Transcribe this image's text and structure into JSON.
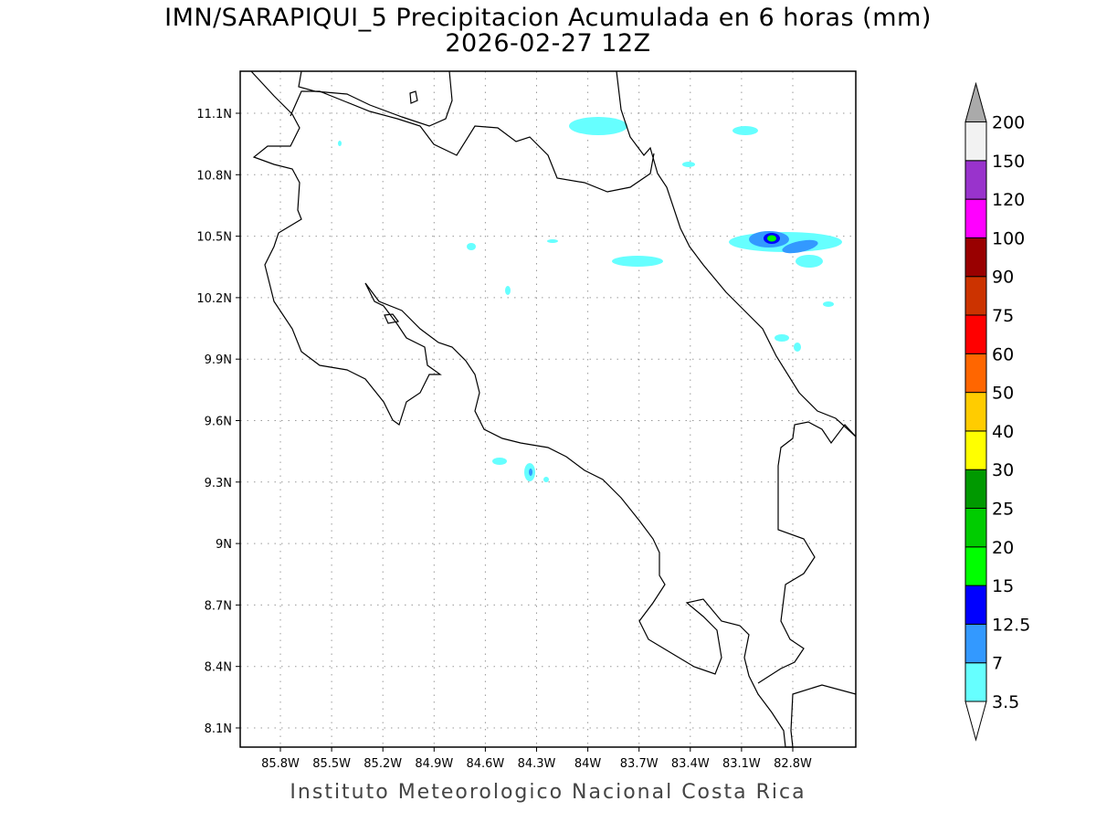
{
  "title": "IMN/SARAPIQUI_5 Precipitacion Acumulada en 6 horas (mm)",
  "subtitle": "2026-02-27 12Z",
  "footer": "Instituto Meteorologico Nacional Costa Rica",
  "map": {
    "region": "Costa Rica",
    "lon_ticks": [
      "85.8W",
      "85.5W",
      "85.2W",
      "84.9W",
      "84.6W",
      "84.3W",
      "84W",
      "83.7W",
      "83.4W",
      "83.1W",
      "82.8W"
    ],
    "lat_ticks": [
      "11.1N",
      "10.8N",
      "10.5N",
      "10.2N",
      "9.9N",
      "9.6N",
      "9.3N",
      "9N",
      "8.7N",
      "8.4N",
      "8.1N"
    ],
    "grid": true
  },
  "colorbar": {
    "levels": [
      "3.5",
      "7",
      "12.5",
      "15",
      "20",
      "25",
      "30",
      "40",
      "50",
      "60",
      "75",
      "90",
      "100",
      "120",
      "150",
      "200"
    ],
    "colors": [
      "#66ffff",
      "#3399ff",
      "#0000ff",
      "#00ff00",
      "#00cc00",
      "#009900",
      "#ffff00",
      "#ffcc00",
      "#ff6600",
      "#ff0000",
      "#cc3300",
      "#990000",
      "#ff00ff",
      "#9933cc",
      "#f2f2f2"
    ],
    "over_color": "#aaaaaa",
    "under_color": "#ffffff"
  }
}
